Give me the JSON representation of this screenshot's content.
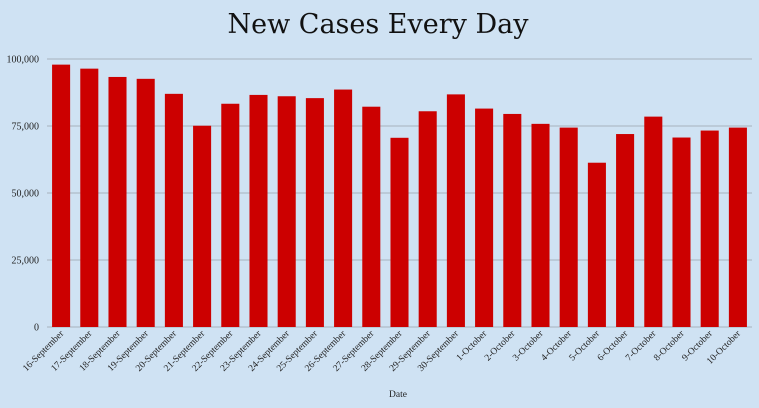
{
  "chart_data": {
    "type": "bar",
    "title": "New Cases Every Day",
    "xlabel": "Date",
    "ylabel": "",
    "ylim": [
      0,
      100000
    ],
    "yticks": [
      0,
      25000,
      50000,
      75000,
      100000
    ],
    "ytick_labels": [
      "0",
      "25,000",
      "50,000",
      "75,000",
      "100,000"
    ],
    "grid": true,
    "bar_color": "#cc0000",
    "background": "#cfe2f3",
    "categories": [
      "16-September",
      "17-September",
      "18-September",
      "19-September",
      "20-September",
      "21-September",
      "22-September",
      "23-September",
      "24-September",
      "25-September",
      "26-September",
      "27-September",
      "28-September",
      "29-September",
      "30-September",
      "1-October",
      "2-October",
      "3-October",
      "4-October",
      "5-October",
      "6-October",
      "7-October",
      "8-October",
      "9-October",
      "10-October"
    ],
    "values": [
      97900,
      96400,
      93300,
      92600,
      87000,
      75100,
      83300,
      86600,
      86100,
      85400,
      88600,
      82200,
      70600,
      80500,
      86800,
      81500,
      79500,
      75800,
      74400,
      61300,
      72000,
      78500,
      70700,
      73300,
      74400
    ]
  }
}
